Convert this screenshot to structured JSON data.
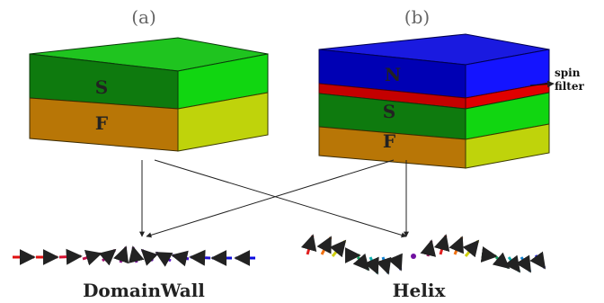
{
  "panels": {
    "a_label": "(a)",
    "b_label": "(b)"
  },
  "stack_a": {
    "top_layer": "S",
    "bottom_layer": "F"
  },
  "stack_b": {
    "top_layer": "N",
    "middle_layer": "S",
    "bottom_layer": "F",
    "filter_label_line1": "spin",
    "filter_label_line2": "filter"
  },
  "captions": {
    "left": "DomainWall",
    "right": "Helix"
  },
  "colors": {
    "superconductor_front": "#0e7a0e",
    "superconductor_top": "#22cc22",
    "superconductor_side": "#0ed60e",
    "ferromagnet_front": "#b87606",
    "ferromagnet_side": "#bfd30b",
    "normal_front": "#0000b4",
    "normal_top": "#1a1ae0",
    "normal_side": "#1414ff",
    "spin_filter": "#c40000"
  }
}
